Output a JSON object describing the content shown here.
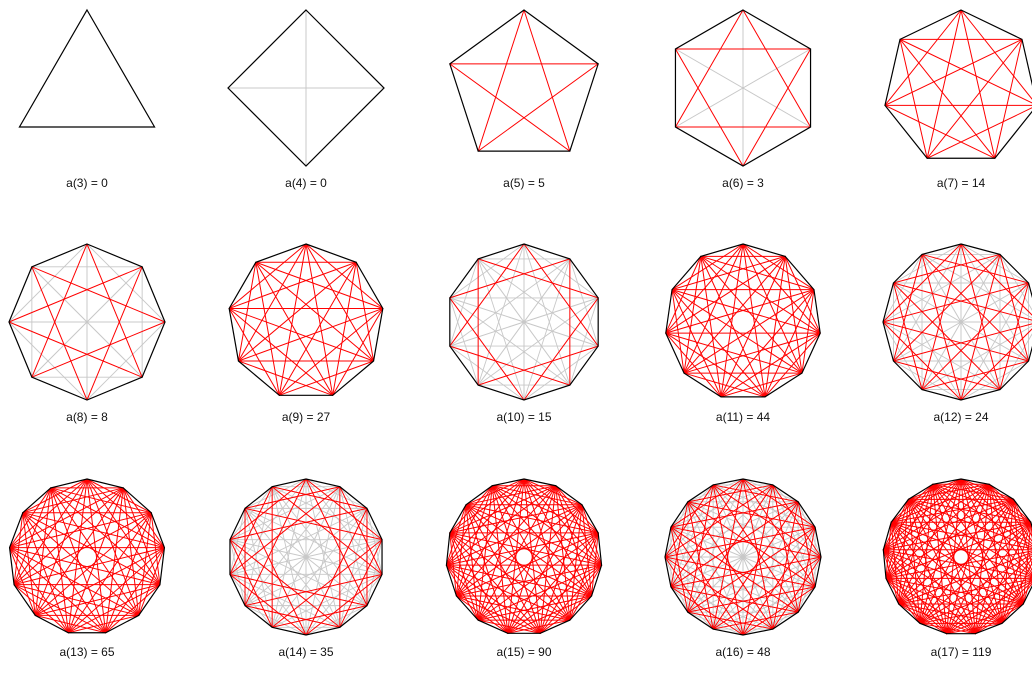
{
  "colors": {
    "edge": "#000000",
    "crossing_diagonal": "#ff0000",
    "through_center_diagonal": "#c8c8c8",
    "background": "#ffffff"
  },
  "polygons": [
    {
      "n": 3,
      "label": "a(3) = 0"
    },
    {
      "n": 4,
      "label": "a(4) = 0"
    },
    {
      "n": 5,
      "label": "a(5) = 5"
    },
    {
      "n": 6,
      "label": "a(6) = 3"
    },
    {
      "n": 7,
      "label": "a(7) = 14"
    },
    {
      "n": 8,
      "label": "a(8) = 8"
    },
    {
      "n": 9,
      "label": "a(9) = 27"
    },
    {
      "n": 10,
      "label": "a(10) = 15"
    },
    {
      "n": 11,
      "label": "a(11) = 44"
    },
    {
      "n": 12,
      "label": "a(12) = 24"
    },
    {
      "n": 13,
      "label": "a(13) = 65"
    },
    {
      "n": 14,
      "label": "a(14) = 35"
    },
    {
      "n": 15,
      "label": "a(15) = 90"
    },
    {
      "n": 16,
      "label": "a(16) = 48"
    },
    {
      "n": 17,
      "label": "a(17) = 119"
    }
  ]
}
